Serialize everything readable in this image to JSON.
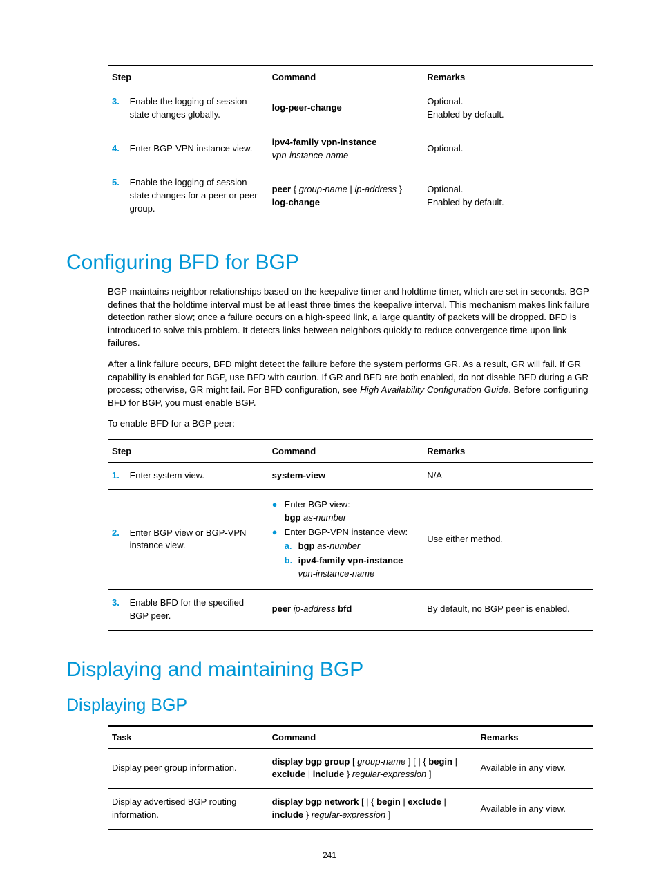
{
  "page_number": "241",
  "headings": {
    "h1_a": "Configuring BFD for BGP",
    "h1_b": "Displaying and maintaining BGP",
    "h2_a": "Displaying BGP"
  },
  "paragraphs": {
    "p1": "BGP maintains neighbor relationships based on the keepalive timer and holdtime timer, which are set in seconds. BGP defines that the holdtime interval must be at least three times the keepalive interval. This mechanism makes link failure detection rather slow; once a failure occurs on a high-speed link, a large quantity of packets will be dropped. BFD is introduced to solve this problem. It detects links between neighbors quickly to reduce convergence time upon link failures.",
    "p2_pre": "After a link failure occurs, BFD might detect the failure before the system performs GR. As a result, GR will fail. If GR capability is enabled for BGP, use BFD with caution. If GR and BFD are both enabled, do not disable BFD during a GR process; otherwise, GR might fail. For BFD configuration, see ",
    "p2_ital": "High Availability Configuration Guide",
    "p2_post": ". Before configuring BFD for BGP, you must enable BGP.",
    "p3": "To enable BFD for a BGP peer:"
  },
  "table1": {
    "headers": {
      "step": "Step",
      "command": "Command",
      "remarks": "Remarks"
    },
    "rows": [
      {
        "num": "3.",
        "step": "Enable the logging of session state changes globally.",
        "cmd_bold": "log-peer-change",
        "remarks_a": "Optional.",
        "remarks_b": "Enabled by default."
      },
      {
        "num": "4.",
        "step": "Enter BGP-VPN instance view.",
        "cmd_bold": "ipv4-family vpn-instance",
        "cmd_ital": "vpn-instance-name",
        "remarks_a": "Optional."
      },
      {
        "num": "5.",
        "step": "Enable the logging of session state changes for a peer or peer group.",
        "cmd_b1": "peer",
        "cmd_i1": "group-name",
        "cmd_i2": "ip-address",
        "cmd_b2": "log-change",
        "remarks_a": "Optional.",
        "remarks_b": "Enabled by default."
      }
    ]
  },
  "table2": {
    "headers": {
      "step": "Step",
      "command": "Command",
      "remarks": "Remarks"
    },
    "rows": {
      "r1": {
        "num": "1.",
        "step": "Enter system view.",
        "cmd": "system-view",
        "remarks": "N/A"
      },
      "r2": {
        "num": "2.",
        "step": "Enter BGP view or BGP-VPN instance view.",
        "b1_text": "Enter BGP view:",
        "b1_cmd_b": "bgp",
        "b1_cmd_i": "as-number",
        "b2_text": "Enter BGP-VPN instance view:",
        "b2a_b": "bgp",
        "b2a_i": "as-number",
        "b2b_b": "ipv4-family vpn-instance",
        "b2b_i": "vpn-instance-name",
        "sub_a": "a.",
        "sub_b": "b.",
        "remarks": "Use either method."
      },
      "r3": {
        "num": "3.",
        "step": "Enable BFD for the specified BGP peer.",
        "cmd_b1": "peer",
        "cmd_i": "ip-address",
        "cmd_b2": "bfd",
        "remarks": "By default, no BGP peer is enabled."
      }
    }
  },
  "table3": {
    "headers": {
      "task": "Task",
      "command": "Command",
      "remarks": "Remarks"
    },
    "rows": {
      "r1": {
        "task": "Display peer group information.",
        "c_b1": "display bgp group",
        "c_i1": "group-name",
        "c_b2": "begin",
        "c_b3": "exclude",
        "c_b4": "include",
        "c_i2": "regular-expression",
        "remarks": "Available in any view."
      },
      "r2": {
        "task": "Display advertised BGP routing information.",
        "c_b1": "display bgp network",
        "c_b2": "begin",
        "c_b3": "exclude",
        "c_b4": "include",
        "c_i2": "regular-expression",
        "remarks": "Available in any view."
      }
    }
  }
}
